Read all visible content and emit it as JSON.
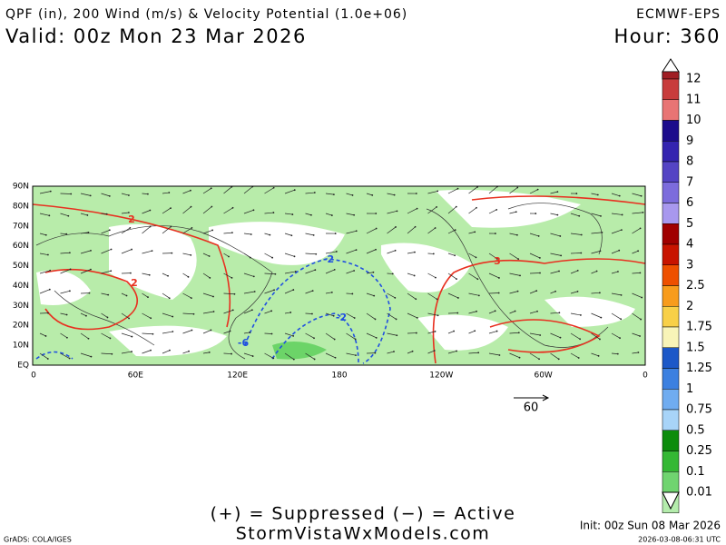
{
  "header": {
    "title": "QPF (in), 200 Wind (m/s) & Velocity Potential (1.0e+06)",
    "model": "ECMWF-EPS",
    "valid": "Valid: 00z Mon 23 Mar 2026",
    "hour": "Hour: 360"
  },
  "colorbar": {
    "labels": [
      "12",
      "11",
      "10",
      "9",
      "8",
      "7",
      "6",
      "5",
      "4",
      "3",
      "2.5",
      "2",
      "1.75",
      "1.5",
      "1.25",
      "1",
      "0.75",
      "0.5",
      "0.25",
      "0.1",
      "0.01"
    ],
    "colors": [
      "#a01e24",
      "#c83c3c",
      "#e87474",
      "#1c0c8c",
      "#3424b0",
      "#5444c4",
      "#7c6cdc",
      "#a898ee",
      "#a00000",
      "#c81400",
      "#ee5000",
      "#f89c1c",
      "#f8d048",
      "#f8f4b8",
      "#1c58c8",
      "#3c80e0",
      "#70acf0",
      "#a8d4f8",
      "#0c8c0c",
      "#34b834",
      "#70d470",
      "#b4ecac"
    ]
  },
  "map": {
    "lat_labels": [
      "90N",
      "80N",
      "70N",
      "60N",
      "50N",
      "40N",
      "30N",
      "20N",
      "10N",
      "EQ"
    ],
    "lon_labels": [
      "0",
      "60E",
      "120E",
      "180",
      "120W",
      "60W",
      "0"
    ],
    "wind_ref": "60",
    "contour_labels": [
      "2",
      "2",
      "-2",
      "-2",
      "-6",
      "3"
    ]
  },
  "footer": {
    "legend": "(+) = Suppressed (−) = Active",
    "site": "StormVistaWxModels.com",
    "init": "Init: 00z Sun 08 Mar 2026",
    "grads": "GrADS: COLA/IGES",
    "timestamp": "2026-03-08-06:31 UTC"
  }
}
